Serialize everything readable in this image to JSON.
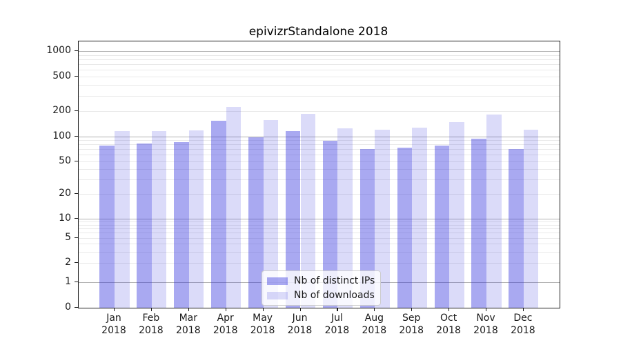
{
  "title": "epivizrStandalone 2018",
  "chart_data": {
    "type": "bar",
    "title": "epivizrStandalone 2018",
    "categories": [
      "Jan",
      "Feb",
      "Mar",
      "Apr",
      "May",
      "Jun",
      "Jul",
      "Aug",
      "Sep",
      "Oct",
      "Nov",
      "Dec"
    ],
    "year_label": "2018",
    "series": [
      {
        "name": "Nb of distinct IPs",
        "color": "rgba(40,40,220,0.40)",
        "values": [
          77,
          82,
          85,
          153,
          97,
          115,
          88,
          70,
          73,
          77,
          94,
          70
        ]
      },
      {
        "name": "Nb of downloads",
        "color": "rgba(40,40,220,0.17)",
        "values": [
          115,
          115,
          118,
          220,
          155,
          185,
          125,
          120,
          127,
          148,
          182,
          120
        ]
      }
    ],
    "xlabel": "",
    "ylabel": "",
    "y_ticks": [
      0,
      1,
      2,
      5,
      10,
      20,
      50,
      100,
      200,
      500,
      1000
    ],
    "yscale": "symlog",
    "ylim": [
      0,
      1300
    ],
    "grid": true,
    "grid_major_color": "#b0b0b0",
    "grid_minor_color": "#e9e9e9",
    "legend_position": "lower center",
    "text_color": "#1a1a1a"
  }
}
